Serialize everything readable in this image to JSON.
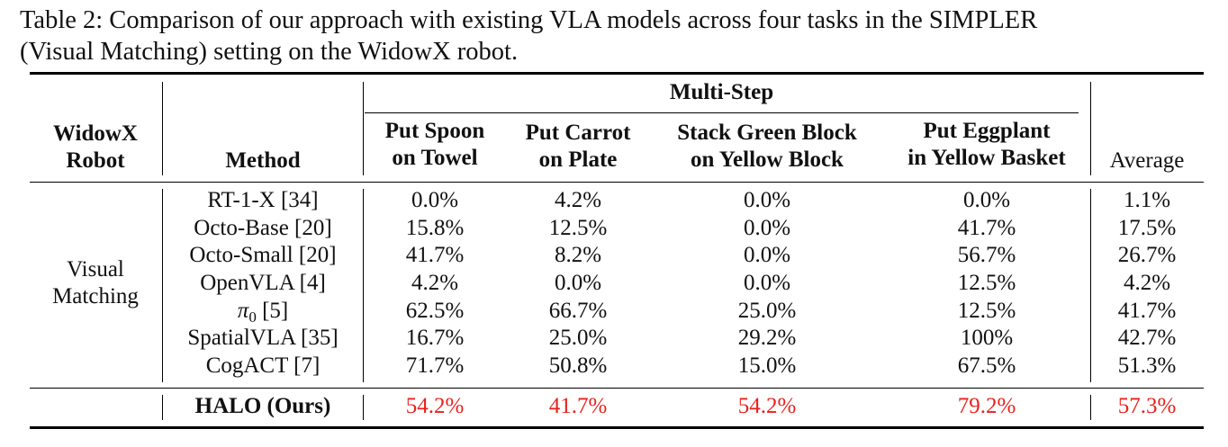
{
  "caption": "Table 2: Comparison of our approach with existing VLA models across four tasks in the SIMPLER (Visual Matching) setting on the WidowX robot.",
  "caption_line1": "Table 2: Comparison of our approach with existing VLA models across four tasks in the SIMPLER",
  "caption_line2": "(Visual Matching) setting on the WidowX robot.",
  "header": {
    "robot_line1": "WidowX",
    "robot_line2": "Robot",
    "method": "Method",
    "group": "Multi-Step",
    "tasks": [
      {
        "line1": "Put Spoon",
        "line2": "on Towel"
      },
      {
        "line1": "Put Carrot",
        "line2": "on Plate"
      },
      {
        "line1": "Stack Green Block",
        "line2": "on Yellow Block"
      },
      {
        "line1": "Put Eggplant",
        "line2": "in Yellow Basket"
      }
    ],
    "average": "Average"
  },
  "setting": {
    "line1": "Visual",
    "line2": "Matching"
  },
  "rows": [
    {
      "method": "RT-1-X [34]",
      "values": [
        "0.0%",
        "4.2%",
        "0.0%",
        "0.0%"
      ],
      "average": "1.1%"
    },
    {
      "method": "Octo-Base [20]",
      "values": [
        "15.8%",
        "12.5%",
        "0.0%",
        "41.7%"
      ],
      "average": "17.5%"
    },
    {
      "method": "Octo-Small [20]",
      "values": [
        "41.7%",
        "8.2%",
        "0.0%",
        "56.7%"
      ],
      "average": "26.7%"
    },
    {
      "method": "OpenVLA [4]",
      "values": [
        "4.2%",
        "0.0%",
        "0.0%",
        "12.5%"
      ],
      "average": "4.2%"
    },
    {
      "method_symbol": "π",
      "method_subscript": "0",
      "method_ref": "[5]",
      "values": [
        "62.5%",
        "66.7%",
        "25.0%",
        "12.5%"
      ],
      "average": "41.7%"
    },
    {
      "method": "SpatialVLA [35]",
      "values": [
        "16.7%",
        "25.0%",
        "29.2%",
        "100%"
      ],
      "average": "42.7%"
    },
    {
      "method": "CogACT [7]",
      "values": [
        "71.7%",
        "50.8%",
        "15.0%",
        "67.5%"
      ],
      "average": "51.3%"
    }
  ],
  "ours": {
    "method": "HALO (Ours)",
    "values": [
      "54.2%",
      "41.7%",
      "54.2%",
      "79.2%"
    ],
    "average": "57.3%",
    "highlight_color": "#e8211c"
  }
}
